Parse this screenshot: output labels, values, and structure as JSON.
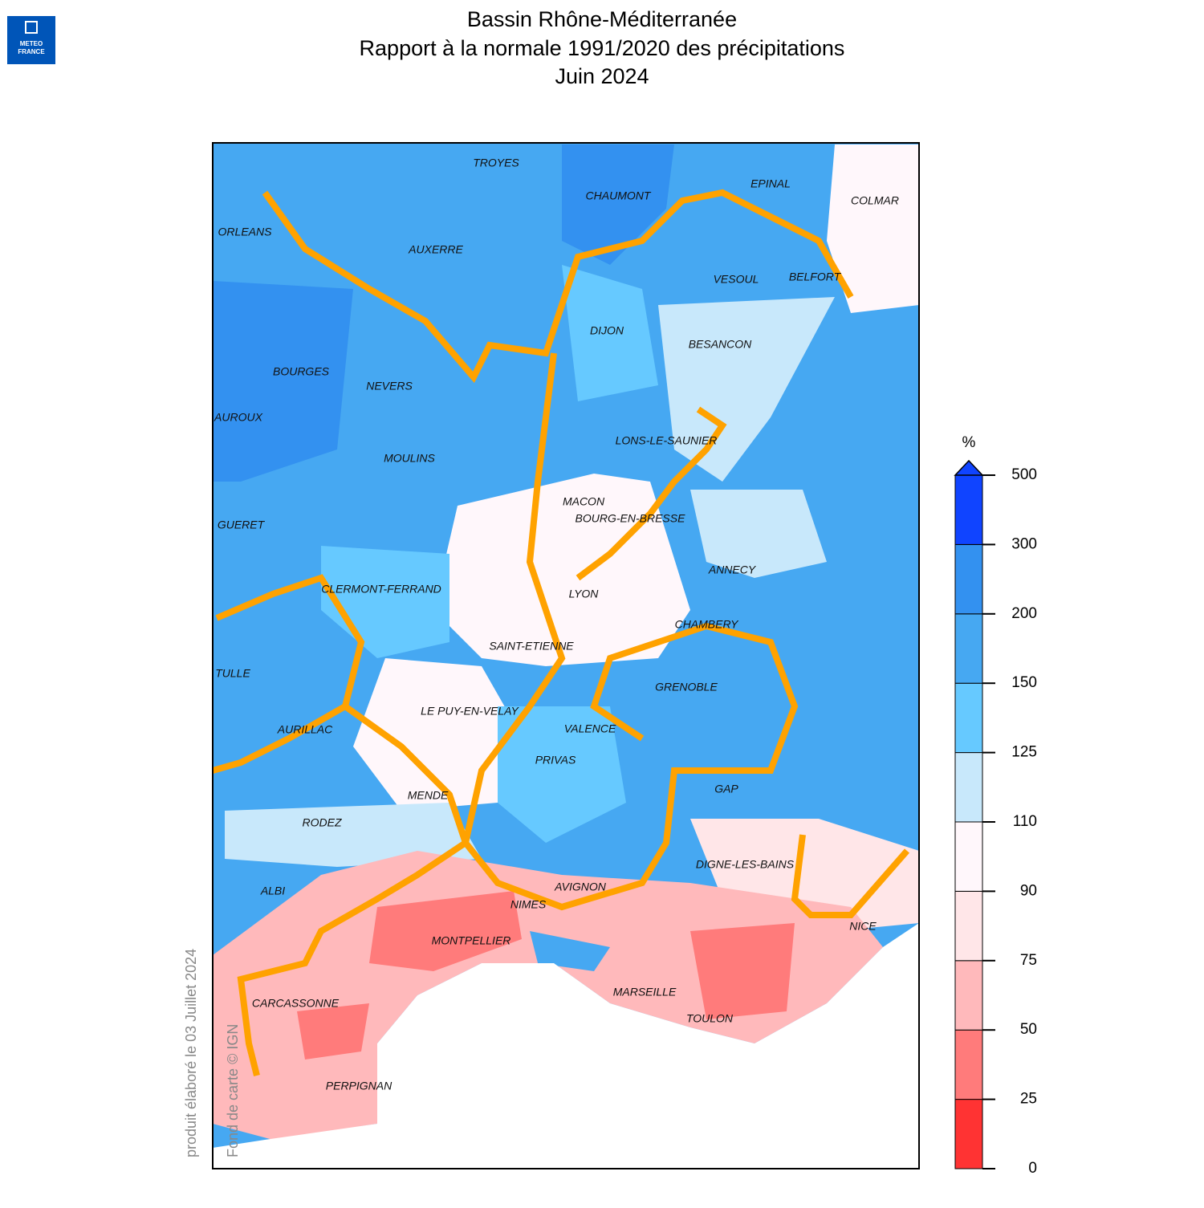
{
  "header": {
    "logo": [
      "METEO",
      "FRANCE"
    ],
    "title": [
      "Bassin Rhône-Méditerranée",
      "Rapport à la normale 1991/2020 des précipitations",
      "Juin 2024"
    ]
  },
  "map": {
    "cities": [
      "TROYES",
      "CHAUMONT",
      "EPINAL",
      "COLMAR",
      "ORLEANS",
      "AUXERRE",
      "VESOUL",
      "BELFORT",
      "DIJON",
      "BESANCON",
      "BOURGES",
      "NEVERS",
      "AUROUX",
      "LONS-LE-SAUNIER",
      "MOULINS",
      "MACON",
      "BOURG-EN-BRESSE",
      "GUERET",
      "ANNECY",
      "CLERMONT-FERRAND",
      "LYON",
      "CHAMBERY",
      "SAINT-ETIENNE",
      "TULLE",
      "GRENOBLE",
      "LE PUY-EN-VELAY",
      "VALENCE",
      "AURILLAC",
      "PRIVAS",
      "GAP",
      "MENDE",
      "RODEZ",
      "DIGNE-LES-BAINS",
      "AVIGNON",
      "ALBI",
      "NIMES",
      "NICE",
      "MONTPELLIER",
      "MARSEILLE",
      "CARCASSONNE",
      "TOULON",
      "PERPIGNAN"
    ]
  },
  "legend": {
    "unit": "%",
    "ticks": [
      0,
      25,
      50,
      75,
      90,
      110,
      125,
      150,
      200,
      300,
      500
    ],
    "colors": [
      "#ff3333",
      "#ff7b7b",
      "#ffb9bb",
      "#ffe6e8",
      "#fff7fb",
      "#c8e8fb",
      "#66c9ff",
      "#46a8f2",
      "#3391f0",
      "#1044ff"
    ]
  },
  "credits": {
    "produced": "produit élaboré le 03 Juillet 2024",
    "source": "Fond de carte © IGN"
  }
}
